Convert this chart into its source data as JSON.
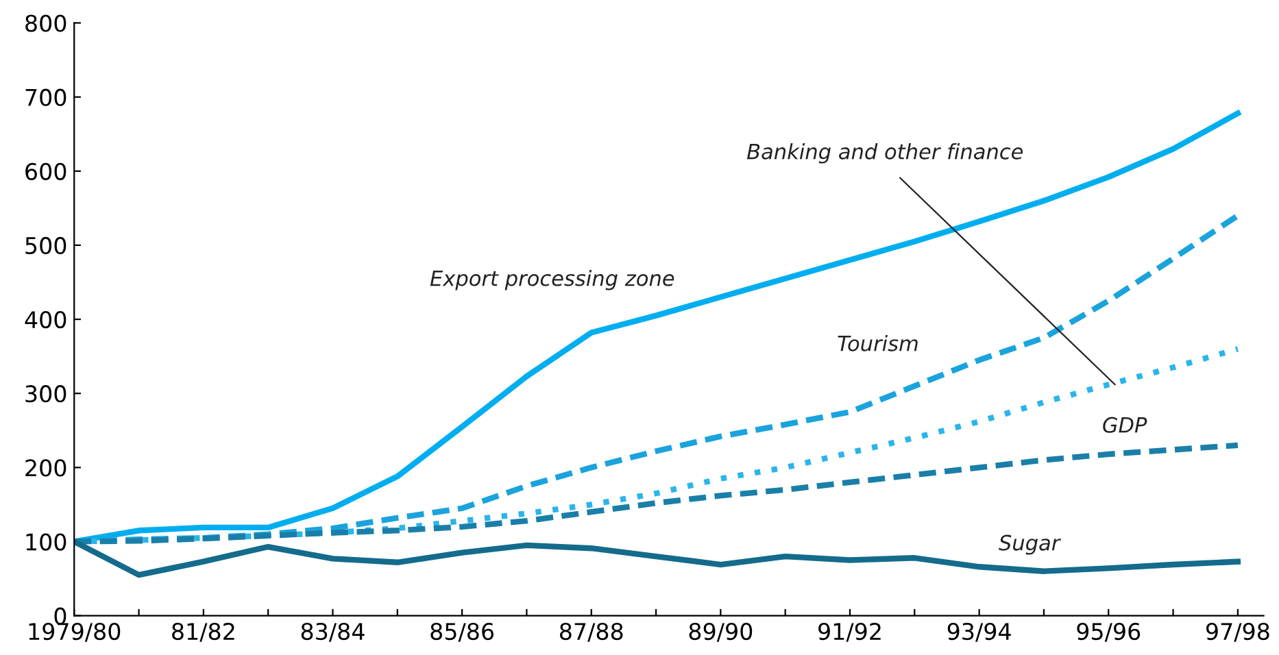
{
  "chart_data": {
    "type": "line",
    "categories": [
      "1979/80",
      null,
      "81/82",
      null,
      "83/84",
      null,
      "85/86",
      null,
      "87/88",
      null,
      "89/90",
      null,
      "91/92",
      null,
      "93/94",
      null,
      "95/96",
      null,
      "97/98"
    ],
    "ylim": [
      0,
      800
    ],
    "yticks": [
      0,
      100,
      200,
      300,
      400,
      500,
      600,
      700,
      800
    ],
    "grid": false,
    "legend": false,
    "marker": "none",
    "series": [
      {
        "name": "Export processing zone",
        "color": "#00aeef",
        "line_style": "solid",
        "values": [
          100,
          115,
          119,
          119,
          145,
          188,
          255,
          323,
          382,
          405,
          430,
          455,
          480,
          505,
          532,
          560,
          592,
          630,
          678
        ]
      },
      {
        "name": "Tourism",
        "color": "#1aa3dc",
        "line_style": "dashed",
        "values": [
          100,
          103,
          105,
          110,
          118,
          132,
          145,
          175,
          200,
          222,
          242,
          258,
          275,
          310,
          345,
          375,
          425,
          482,
          540
        ]
      },
      {
        "name": "Banking and other finance",
        "color": "#2ab4ec",
        "line_style": "dotted",
        "values": [
          100,
          102,
          105,
          108,
          112,
          118,
          128,
          138,
          150,
          165,
          185,
          200,
          220,
          240,
          262,
          288,
          312,
          335,
          360
        ]
      },
      {
        "name": "GDP",
        "color": "#1a7fa8",
        "line_style": "dashed",
        "values": [
          100,
          101,
          104,
          108,
          112,
          115,
          120,
          128,
          140,
          152,
          162,
          170,
          180,
          190,
          200,
          210,
          218,
          224,
          230
        ]
      },
      {
        "name": "Sugar",
        "color": "#146b8c",
        "line_style": "solid",
        "values": [
          100,
          55,
          73,
          93,
          77,
          72,
          85,
          95,
          91,
          80,
          69,
          80,
          75,
          78,
          66,
          60,
          64,
          69,
          73
        ]
      }
    ]
  }
}
